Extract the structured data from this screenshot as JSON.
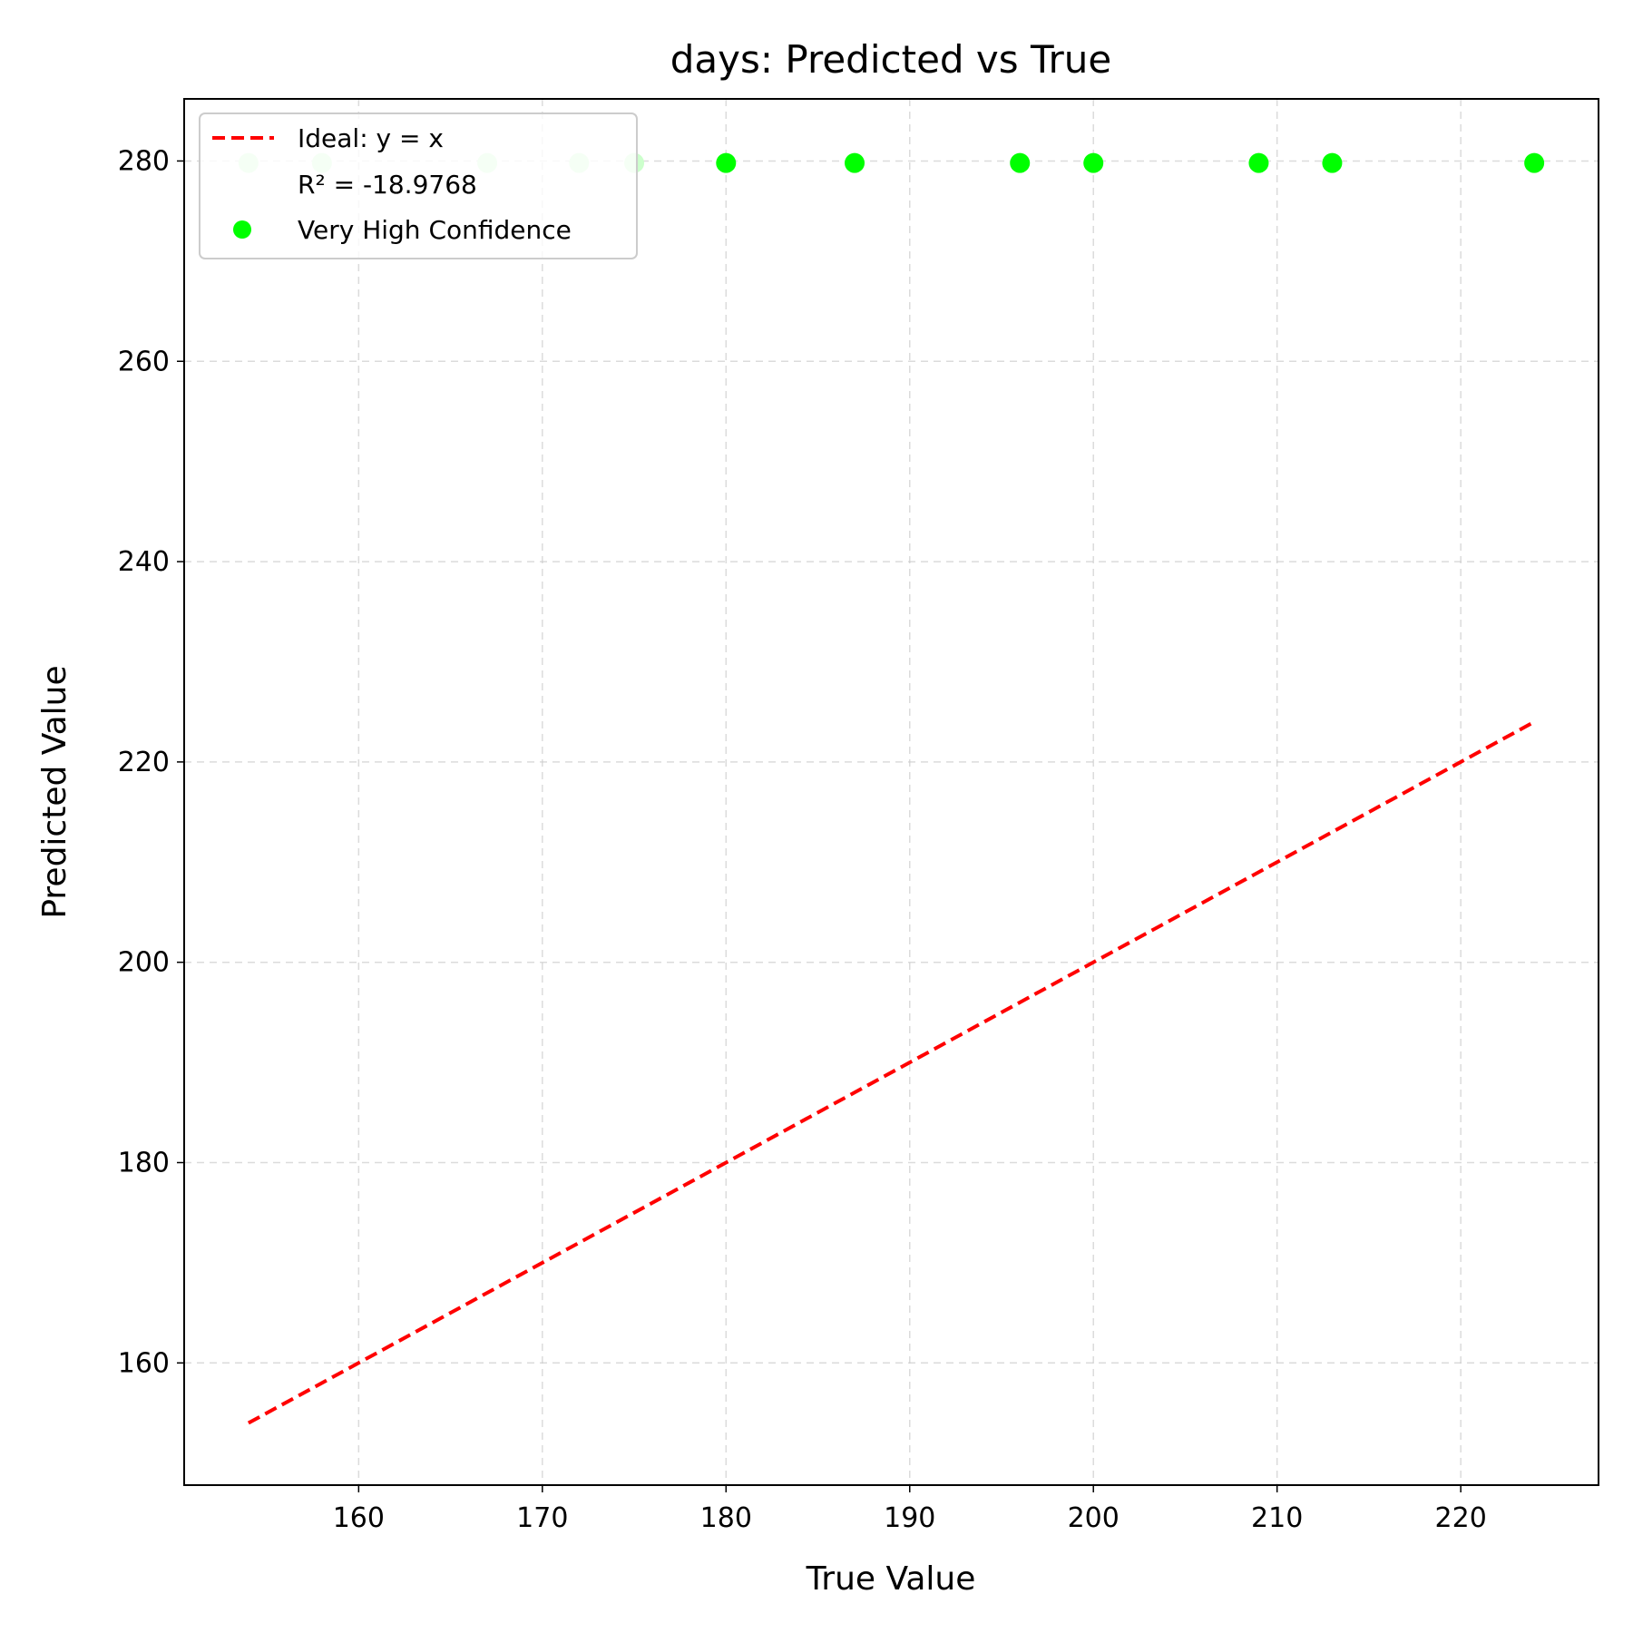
{
  "chart_data": {
    "type": "scatter",
    "title": "days: Predicted vs True",
    "xlabel": "True Value",
    "ylabel": "Predicted Value",
    "xlim": [
      150.5,
      227.5
    ],
    "ylim": [
      147.8,
      286.2
    ],
    "xticks": [
      160,
      170,
      180,
      190,
      200,
      210,
      220
    ],
    "yticks": [
      160,
      180,
      200,
      220,
      240,
      260,
      280
    ],
    "grid": true,
    "legend_position": "top-left",
    "ideal_line": {
      "label": "Ideal: y = x",
      "x": [
        154,
        224
      ],
      "y": [
        154,
        224
      ],
      "color": "#ff0000"
    },
    "r2_label": "R² = -18.9768",
    "series": [
      {
        "name": "Very High Confidence",
        "color": "#00ff00",
        "x": [
          180,
          187,
          196,
          200,
          209,
          213,
          224
        ],
        "y": [
          279.8,
          279.8,
          279.8,
          279.8,
          279.8,
          279.8,
          279.8
        ]
      },
      {
        "color": "#ccffcc",
        "x": [
          154,
          158,
          167,
          172,
          175
        ],
        "y": [
          279.8,
          279.8,
          279.8,
          279.8,
          279.8
        ]
      }
    ],
    "colors": {
      "axis": "#000000",
      "grid": "#cccccc",
      "legend_border": "#cccccc"
    }
  }
}
